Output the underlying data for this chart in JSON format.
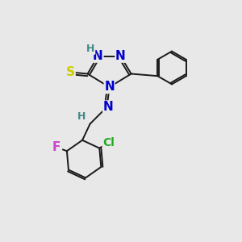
{
  "background_color": "#e8e8e8",
  "bond_color": "#1a1a1a",
  "atom_colors": {
    "N": "#0000cc",
    "S": "#cccc00",
    "F": "#cc44cc",
    "Cl": "#22aa22",
    "H": "#448888",
    "C": "#1a1a1a"
  },
  "font_size_atoms": 11,
  "font_size_h": 9,
  "lw": 1.4
}
